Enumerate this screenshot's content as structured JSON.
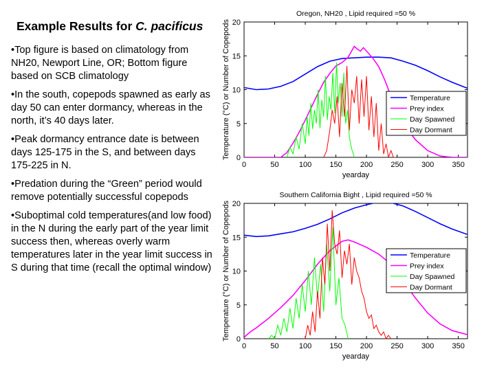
{
  "slide": {
    "title_prefix": "Example Results for ",
    "title_species": "C. pacificus",
    "bullets": [
      "Top figure is based on climatology from NH20, Newport Line, OR; Bottom figure based on SCB climatology",
      "In the south, copepods spawned as early as day 50 can enter dormancy, whereas in the north, it’s 40 days later.",
      "Peak dormancy entrance date is between days 125-175 in the S, and between days 175-225 in N.",
      "Predation during the “Green” period would remove potentially successful copepods",
      "Suboptimal cold temperatures(and low food) in the N during the early part of the year limit success then, whereas overly warm temperatures later in the year limit success in S during that time (recall the optimal window)"
    ]
  },
  "chart_data": [
    {
      "type": "line",
      "title": "Oregon, NH20 , Lipid required =50 %",
      "xlabel": "yearday",
      "ylabel": "Temperature (°C) or Number of Copepods",
      "xlim": [
        0,
        365
      ],
      "ylim": [
        0,
        20
      ],
      "xticks": [
        0,
        50,
        100,
        150,
        200,
        250,
        300,
        350
      ],
      "yticks": [
        0,
        5,
        10,
        15,
        20
      ],
      "legend_position": "right",
      "series": [
        {
          "name": "Temperature",
          "color": "#0000ff",
          "x": [
            0,
            20,
            40,
            60,
            80,
            100,
            120,
            140,
            160,
            180,
            200,
            220,
            240,
            260,
            280,
            300,
            320,
            340,
            365
          ],
          "y": [
            10.3,
            10.0,
            10.1,
            10.5,
            11.2,
            12.3,
            13.4,
            14.2,
            14.6,
            14.7,
            14.8,
            14.8,
            14.7,
            14.2,
            13.6,
            12.8,
            11.9,
            11.1,
            10.2
          ]
        },
        {
          "name": "Prey index",
          "color": "#ff00ff",
          "x": [
            0,
            40,
            50,
            60,
            70,
            80,
            90,
            100,
            110,
            120,
            130,
            140,
            150,
            160,
            170,
            180,
            185,
            190,
            195,
            200,
            210,
            220,
            230,
            240,
            260,
            280,
            300,
            320,
            340,
            365
          ],
          "y": [
            0,
            0,
            0,
            0,
            0.7,
            2.1,
            3.7,
            5.5,
            7.4,
            9.3,
            11.1,
            12.4,
            13.5,
            14.0,
            14.8,
            16.4,
            16.0,
            15.7,
            16.2,
            15.7,
            14.7,
            13.4,
            11.4,
            9.0,
            5.0,
            2.6,
            1.0,
            0.2,
            0,
            0
          ]
        },
        {
          "name": "Day Spawned",
          "color": "#00ff00",
          "x": [
            70,
            75,
            80,
            85,
            90,
            95,
            100,
            103,
            106,
            109,
            112,
            115,
            118,
            121,
            124,
            127,
            130,
            133,
            136,
            139,
            142,
            145,
            148,
            151,
            154,
            157,
            160,
            163,
            166,
            169,
            172,
            175,
            180
          ],
          "y": [
            0,
            1.5,
            0.5,
            3,
            1.2,
            5,
            2,
            6,
            3.2,
            8,
            4.2,
            7,
            5,
            10,
            4.3,
            8.5,
            6,
            12,
            5.5,
            9,
            7,
            12.5,
            6.5,
            14,
            8,
            11,
            6,
            12.5,
            5,
            7,
            3,
            1.5,
            0
          ]
        },
        {
          "name": "Day Dormant",
          "color": "#ff0000",
          "x": [
            130,
            135,
            140,
            144,
            148,
            152,
            156,
            160,
            164,
            168,
            172,
            176,
            180,
            184,
            188,
            192,
            196,
            200,
            204,
            208,
            212,
            216,
            220,
            224,
            228,
            232,
            236,
            240,
            244,
            248
          ],
          "y": [
            0,
            1,
            4,
            7,
            5,
            9,
            3,
            11,
            6,
            13.5,
            4,
            10,
            8,
            12,
            5,
            11.5,
            6,
            12,
            4,
            9,
            3,
            8,
            1,
            5,
            0.5,
            2,
            0,
            1,
            0,
            0
          ]
        }
      ]
    },
    {
      "type": "line",
      "title": "Southern California Bight , Lipid required =50 %",
      "xlabel": "yearday",
      "ylabel": "Temperature (°C) or Number of Copepods",
      "xlim": [
        0,
        365
      ],
      "ylim": [
        0,
        20
      ],
      "xticks": [
        0,
        50,
        100,
        150,
        200,
        250,
        300,
        350
      ],
      "yticks": [
        0,
        5,
        10,
        15,
        20
      ],
      "legend_position": "right",
      "series": [
        {
          "name": "Temperature",
          "color": "#0000ff",
          "x": [
            0,
            20,
            40,
            60,
            80,
            100,
            120,
            140,
            160,
            180,
            200,
            220,
            240,
            260,
            280,
            300,
            320,
            340,
            365
          ],
          "y": [
            15.3,
            15.1,
            15.2,
            15.5,
            15.8,
            16.3,
            16.9,
            17.7,
            18.6,
            19.3,
            19.8,
            20.2,
            20.1,
            19.6,
            18.8,
            17.9,
            17.0,
            16.2,
            15.4
          ]
        },
        {
          "name": "Prey index",
          "color": "#ff00ff",
          "x": [
            0,
            10,
            20,
            40,
            60,
            80,
            100,
            120,
            140,
            160,
            170,
            180,
            200,
            220,
            240,
            260,
            280,
            300,
            320,
            340,
            365
          ],
          "y": [
            0.2,
            1.0,
            1.6,
            3.0,
            4.6,
            6.4,
            8.6,
            11.0,
            13.0,
            14.4,
            14.6,
            14.3,
            13.5,
            12.5,
            11.0,
            8.5,
            6.0,
            3.8,
            2.2,
            1.2,
            0.6
          ]
        },
        {
          "name": "Day Spawned",
          "color": "#00ff00",
          "x": [
            40,
            45,
            50,
            55,
            60,
            65,
            70,
            75,
            80,
            85,
            90,
            95,
            100,
            105,
            110,
            115,
            120,
            125,
            130,
            135,
            140,
            145,
            150,
            155,
            160,
            165,
            170
          ],
          "y": [
            0,
            0.5,
            0,
            2,
            0.5,
            3,
            1,
            4.5,
            1.5,
            6,
            3,
            8,
            4,
            10,
            5,
            12,
            6,
            11,
            4,
            14,
            7,
            16.5,
            5,
            9,
            3,
            2,
            0
          ]
        },
        {
          "name": "Day Dormant",
          "color": "#ff0000",
          "x": [
            100,
            104,
            108,
            112,
            116,
            120,
            124,
            128,
            132,
            136,
            140,
            144,
            148,
            152,
            156,
            160,
            164,
            168,
            172,
            176,
            180,
            184,
            188,
            192,
            196,
            200,
            204,
            208,
            212,
            216,
            220,
            224,
            228,
            232,
            236,
            240
          ],
          "y": [
            0,
            2,
            0.5,
            4,
            1,
            7,
            3,
            12,
            8,
            17,
            10,
            19,
            14,
            12.5,
            16,
            9,
            13,
            11,
            14,
            8,
            12,
            10,
            9,
            7,
            6,
            4,
            3,
            3.5,
            1.5,
            2,
            1,
            0.5,
            1,
            0,
            0.5,
            0
          ]
        }
      ]
    }
  ]
}
